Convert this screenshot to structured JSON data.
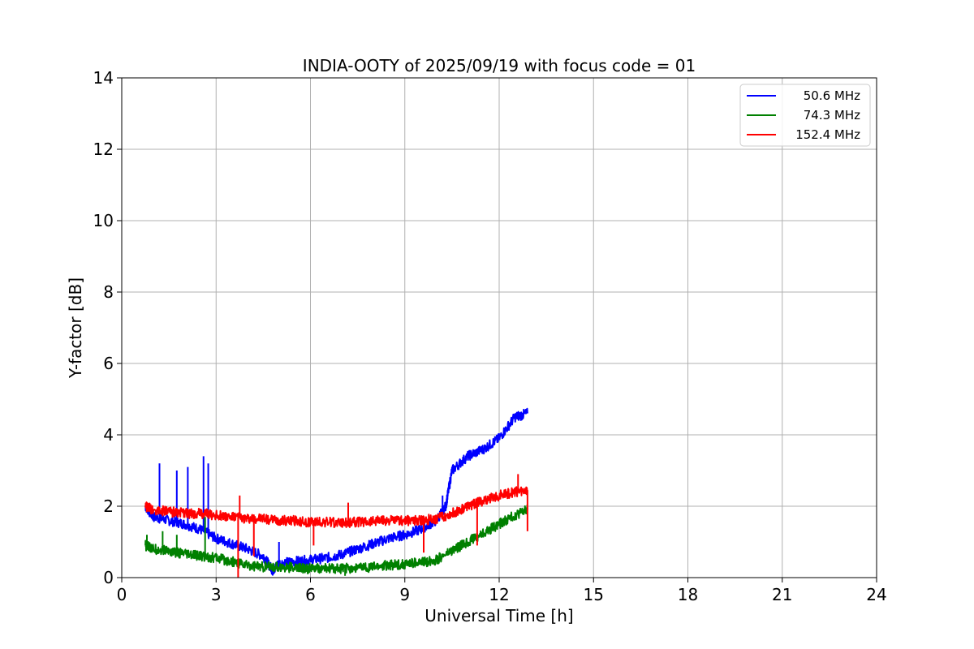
{
  "chart_data": {
    "type": "line",
    "title": "INDIA-OOTY of 2025/09/19 with focus code = 01",
    "xlabel": "Universal Time [h]",
    "ylabel": "Y-factor [dB]",
    "xlim": [
      0,
      24
    ],
    "ylim": [
      0,
      14
    ],
    "xticks": [
      0,
      3,
      6,
      9,
      12,
      15,
      18,
      21,
      24
    ],
    "yticks": [
      0,
      2,
      4,
      6,
      8,
      10,
      12,
      14
    ],
    "grid": true,
    "legend_position": "top-right",
    "series": [
      {
        "name": "50.6 MHz",
        "color": "#0000ff",
        "x": [
          0.75,
          1.0,
          1.5,
          2.0,
          2.5,
          3.0,
          3.5,
          4.0,
          4.5,
          4.8,
          5.0,
          5.5,
          6.0,
          6.5,
          7.0,
          7.5,
          8.0,
          8.5,
          9.0,
          9.5,
          10.0,
          10.3,
          10.5,
          11.0,
          11.5,
          12.0,
          12.5,
          12.9
        ],
        "y": [
          2.0,
          1.7,
          1.6,
          1.5,
          1.35,
          1.1,
          0.95,
          0.8,
          0.6,
          0.2,
          0.4,
          0.45,
          0.5,
          0.55,
          0.65,
          0.8,
          0.95,
          1.1,
          1.2,
          1.35,
          1.6,
          2.0,
          3.0,
          3.4,
          3.6,
          3.9,
          4.5,
          4.6
        ],
        "spikes": [
          [
            1.2,
            3.2
          ],
          [
            1.75,
            3.0
          ],
          [
            2.1,
            3.1
          ],
          [
            2.6,
            3.4
          ],
          [
            2.75,
            3.2
          ],
          [
            5.0,
            1.0
          ],
          [
            10.2,
            2.3
          ]
        ]
      },
      {
        "name": "74.3 MHz",
        "color": "#008000",
        "x": [
          0.75,
          1.0,
          1.5,
          2.0,
          2.5,
          3.0,
          3.5,
          4.0,
          4.5,
          5.0,
          5.5,
          6.0,
          6.5,
          7.0,
          7.5,
          8.0,
          8.5,
          9.0,
          9.5,
          10.0,
          10.5,
          11.0,
          11.5,
          12.0,
          12.5,
          12.9
        ],
        "y": [
          0.9,
          0.8,
          0.75,
          0.65,
          0.6,
          0.55,
          0.45,
          0.35,
          0.3,
          0.3,
          0.28,
          0.25,
          0.25,
          0.25,
          0.28,
          0.3,
          0.35,
          0.38,
          0.42,
          0.5,
          0.75,
          1.0,
          1.25,
          1.5,
          1.75,
          1.9
        ],
        "spikes": [
          [
            0.8,
            1.2
          ],
          [
            1.3,
            1.3
          ],
          [
            1.75,
            1.2
          ],
          [
            2.65,
            1.7
          ],
          [
            7.1,
            0.05
          ]
        ]
      },
      {
        "name": "152.4 MHz",
        "color": "#ff0000",
        "x": [
          0.75,
          1.0,
          1.5,
          2.0,
          2.5,
          3.0,
          3.5,
          4.0,
          4.5,
          5.0,
          5.5,
          6.0,
          6.5,
          7.0,
          7.5,
          8.0,
          8.5,
          9.0,
          9.5,
          10.0,
          10.5,
          11.0,
          11.5,
          12.0,
          12.5,
          12.9
        ],
        "y": [
          2.0,
          1.9,
          1.85,
          1.8,
          1.8,
          1.75,
          1.7,
          1.65,
          1.65,
          1.6,
          1.6,
          1.55,
          1.55,
          1.55,
          1.55,
          1.6,
          1.6,
          1.6,
          1.6,
          1.65,
          1.8,
          2.0,
          2.15,
          2.3,
          2.4,
          2.45
        ],
        "spikes": [
          [
            3.7,
            0.0
          ],
          [
            3.75,
            2.3
          ],
          [
            4.2,
            0.6
          ],
          [
            6.1,
            0.9
          ],
          [
            7.2,
            2.1
          ],
          [
            9.6,
            0.7
          ],
          [
            11.3,
            0.9
          ],
          [
            12.6,
            2.9
          ],
          [
            12.9,
            1.3
          ]
        ]
      }
    ]
  }
}
